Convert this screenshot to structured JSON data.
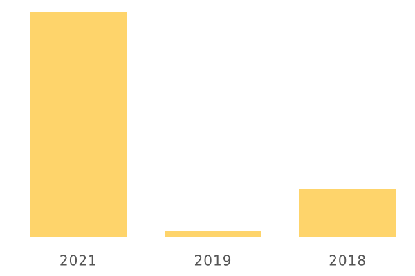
{
  "chart_data": {
    "type": "bar",
    "categories": [
      "2021",
      "2019",
      "2018"
    ],
    "values": [
      326,
      8,
      69
    ],
    "color": "#fed46b"
  }
}
